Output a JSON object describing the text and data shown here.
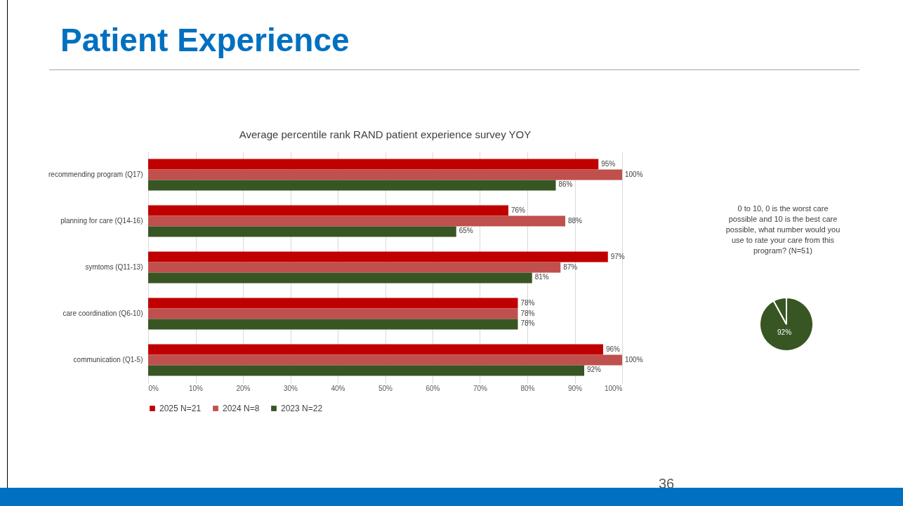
{
  "chart_data": [
    {
      "type": "bar",
      "orientation": "horizontal",
      "title": "Patient Experience",
      "subtitle": "Average percentile rank RAND patient experience survey YOY",
      "categories": [
        "recommending program  (Q17)",
        "planning for care (Q14-16)",
        "symtoms  (Q11-13)",
        "care coordination  (Q6-10)",
        "communication  (Q1-5)"
      ],
      "series": [
        {
          "name": "2025 N=21",
          "color": "#c00000",
          "values": [
            95,
            76,
            97,
            78,
            96
          ],
          "value_labels": [
            "95%",
            "76%",
            "97%",
            "78%",
            "96%"
          ]
        },
        {
          "name": "2024 N=8",
          "color": "#c0504d",
          "values": [
            100,
            88,
            87,
            78,
            100
          ],
          "value_labels": [
            "100%",
            "88%",
            "87%",
            "78%",
            "100%"
          ]
        },
        {
          "name": "2023 N=22",
          "color": "#375623",
          "values": [
            86,
            65,
            81,
            78,
            92
          ],
          "value_labels": [
            "86%",
            "65%",
            "81%",
            "78%",
            "92%"
          ]
        }
      ],
      "xlim": [
        0,
        100
      ],
      "xticks": [
        {
          "value": 0,
          "label": "0%"
        },
        {
          "value": 10,
          "label": "10%"
        },
        {
          "value": 20,
          "label": "20%"
        },
        {
          "value": 30,
          "label": "30%"
        },
        {
          "value": 40,
          "label": "40%"
        },
        {
          "value": 50,
          "label": "50%"
        },
        {
          "value": 60,
          "label": "60%"
        },
        {
          "value": 70,
          "label": "70%"
        },
        {
          "value": 80,
          "label": "80%"
        },
        {
          "value": 90,
          "label": "90%"
        },
        {
          "value": 100,
          "label": "100%"
        }
      ],
      "grid": "x",
      "legend": "bottom"
    },
    {
      "type": "pie",
      "title": "0 to 10, 0 is the worst care possible and 10 is the best care possible, what number would you use to rate your care from this program? (N=51)",
      "categories": [
        null,
        null
      ],
      "values": [
        92,
        8
      ],
      "colors": [
        "#375623",
        "#375623"
      ],
      "value_labels": [
        "92%",
        null
      ],
      "annotations": [
        "36"
      ]
    }
  ]
}
